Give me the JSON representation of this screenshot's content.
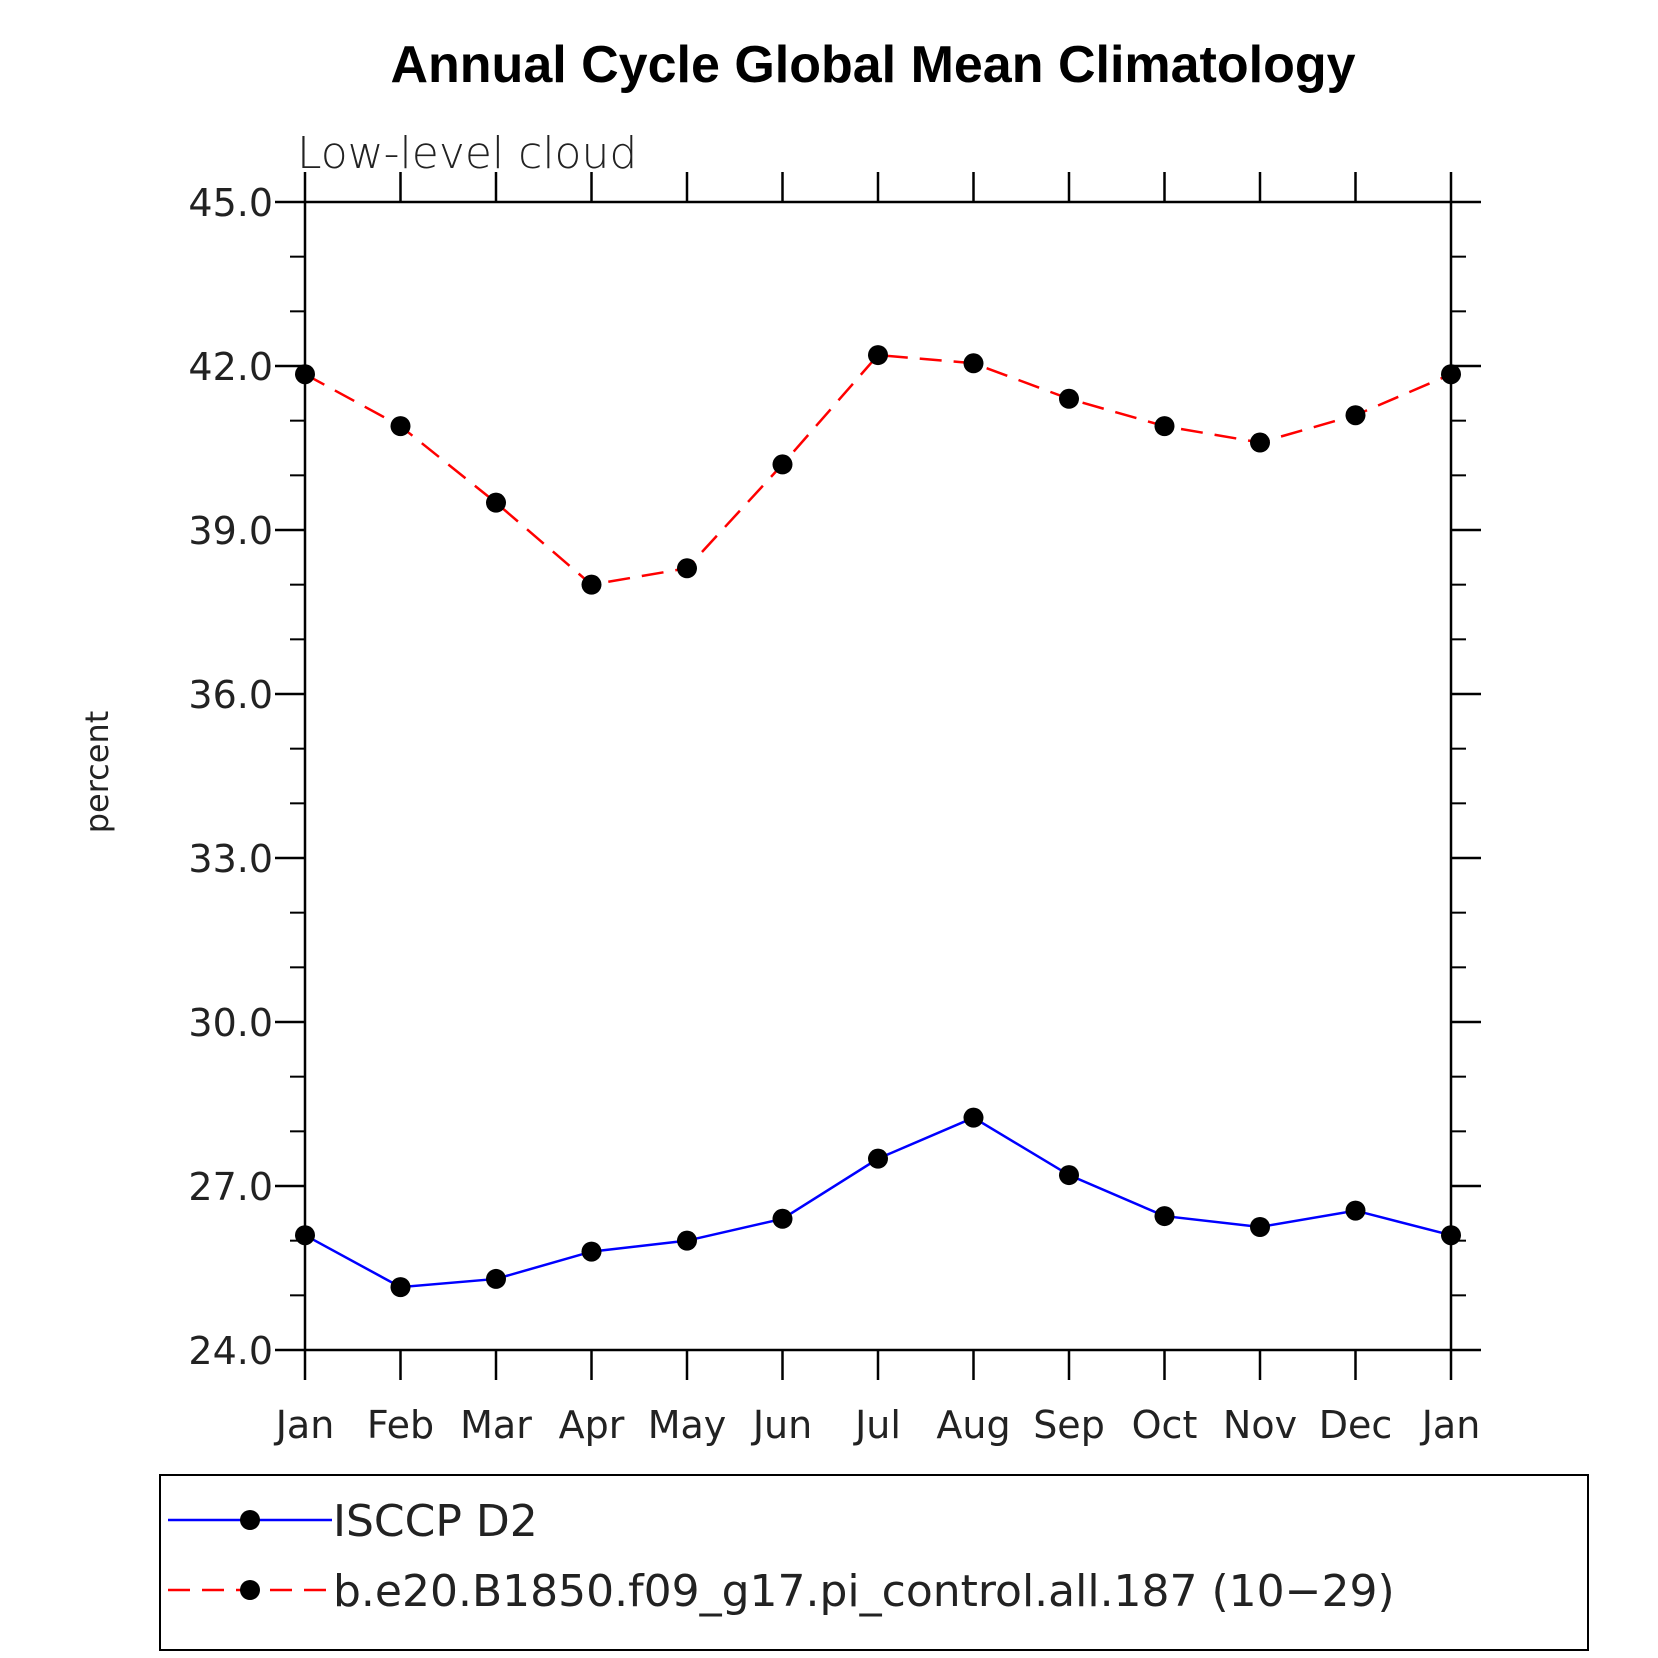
{
  "chart_data": {
    "type": "line",
    "title": "Annual Cycle Global Mean Climatology",
    "subtitle": "Low-level cloud",
    "ylabel": "percent",
    "xlabel": "",
    "categories": [
      "Jan",
      "Feb",
      "Mar",
      "Apr",
      "May",
      "Jun",
      "Jul",
      "Aug",
      "Sep",
      "Oct",
      "Nov",
      "Dec",
      "Jan"
    ],
    "ylim": [
      24.0,
      45.0
    ],
    "yticks": [
      "24.0",
      "27.0",
      "30.0",
      "33.0",
      "36.0",
      "39.0",
      "42.0",
      "45.0"
    ],
    "grid": false,
    "legend_position": "bottom",
    "series": [
      {
        "name": "ISCCP D2",
        "color": "#0000ff",
        "line_style": "solid",
        "marker": "filled-circle",
        "values": [
          26.1,
          25.15,
          25.3,
          25.8,
          26.0,
          26.4,
          27.5,
          28.25,
          27.2,
          26.45,
          26.25,
          26.55,
          26.1
        ]
      },
      {
        "name": "b.e20.B1850.f09_g17.pi_control.all.187 (10−29)",
        "color": "#ff0000",
        "line_style": "dashed",
        "marker": "filled-circle",
        "values": [
          41.85,
          40.9,
          39.5,
          38.0,
          38.3,
          40.2,
          42.2,
          42.05,
          41.4,
          40.9,
          40.6,
          41.1,
          41.85
        ]
      }
    ]
  }
}
